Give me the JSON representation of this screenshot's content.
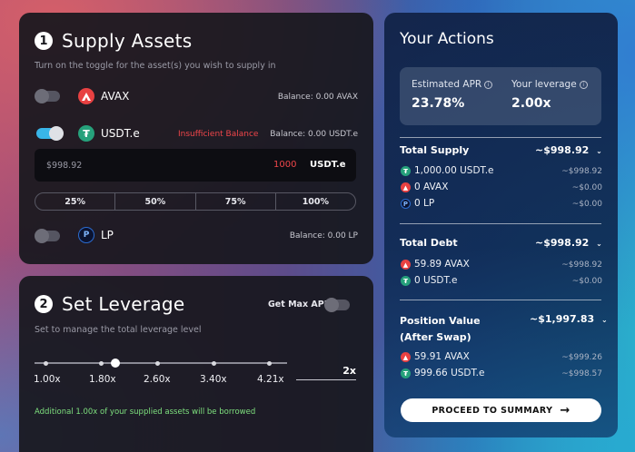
{
  "supply": {
    "step": "1",
    "title": "Supply Assets",
    "subtitle": "Turn on the toggle for the asset(s) you wish to supply in",
    "assets": [
      {
        "name": "AVAX",
        "balance": "Balance: 0.00 AVAX",
        "enabled": false
      },
      {
        "name": "USDT.e",
        "balance": "Balance: 0.00 USDT.e",
        "enabled": true,
        "warning": "Insufficient Balance"
      },
      {
        "name": "LP",
        "balance": "Balance: 0.00 LP",
        "enabled": false
      }
    ],
    "amount_input": {
      "value_usd": "$998.92",
      "amount": "1000",
      "token": "USDT.e"
    },
    "percent_buttons": [
      "25%",
      "50%",
      "75%",
      "100%"
    ]
  },
  "leverage": {
    "step": "2",
    "title": "Set Leverage",
    "subtitle": "Set to manage the total leverage level",
    "max_apr_label": "Get Max APR",
    "max_apr_enabled": false,
    "ticks": [
      "1.00x",
      "1.80x",
      "2.60x",
      "3.40x",
      "4.21x"
    ],
    "selected_value": 2.0,
    "input_value": "2x",
    "note": "Additional 1.00x of your supplied assets will be borrowed"
  },
  "actions": {
    "title": "Your Actions",
    "estimated_apr_label": "Estimated APR",
    "estimated_apr": "23.78%",
    "leverage_label": "Your leverage",
    "leverage_value": "2.00x",
    "total_supply": {
      "label": "Total Supply",
      "value": "~$998.92",
      "rows": [
        {
          "text": "1,000.00 USDT.e",
          "value": "~$998.92",
          "icon": "usdt-icon"
        },
        {
          "text": "0 AVAX",
          "value": "~$0.00",
          "icon": "avax-icon"
        },
        {
          "text": "0 LP",
          "value": "~$0.00",
          "icon": "lp-icon"
        }
      ]
    },
    "total_debt": {
      "label": "Total Debt",
      "value": "~$998.92",
      "rows": [
        {
          "text": "59.89 AVAX",
          "value": "~$998.92",
          "icon": "avax-icon"
        },
        {
          "text": "0 USDT.e",
          "value": "~$0.00",
          "icon": "usdt-icon"
        }
      ]
    },
    "position_value": {
      "label_line1": "Position Value",
      "label_line2": "(After Swap)",
      "value": "~$1,997.83",
      "rows": [
        {
          "text": "59.91 AVAX",
          "value": "~$999.26",
          "icon": "avax-icon"
        },
        {
          "text": "999.66 USDT.e",
          "value": "~$998.57",
          "icon": "usdt-icon"
        }
      ]
    },
    "proceed_label": "PROCEED TO SUMMARY"
  },
  "colors": {
    "accent_blue": "#39b5e8",
    "warning_red": "#f0464a",
    "success_green": "#7ee07e",
    "avax_red": "#e84142",
    "usdt_green": "#26a17b"
  }
}
